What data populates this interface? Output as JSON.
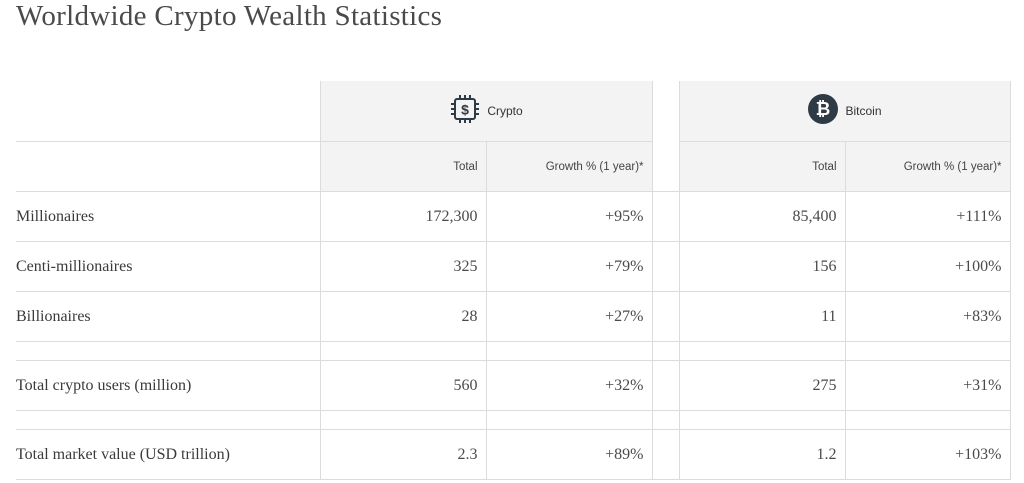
{
  "page": {
    "title": "Worldwide Crypto Wealth Statistics"
  },
  "colors": {
    "header_bg": "#f3f3f3",
    "bitcoin_icon_bg": "#2f3a47",
    "border": "#dcdcdc"
  },
  "groups": {
    "crypto": {
      "label": "Crypto",
      "icon": "crypto-chip-dollar-icon"
    },
    "bitcoin": {
      "label": "Bitcoin",
      "icon": "bitcoin-icon"
    }
  },
  "subheaders": {
    "total": "Total",
    "growth": "Growth % (1 year)*"
  },
  "rows": [
    {
      "label": "Millionaires",
      "crypto_total": "172,300",
      "crypto_growth": "+95%",
      "bitcoin_total": "85,400",
      "bitcoin_growth": "+111%"
    },
    {
      "label": "Centi-millionaires",
      "crypto_total": "325",
      "crypto_growth": "+79%",
      "bitcoin_total": "156",
      "bitcoin_growth": "+100%"
    },
    {
      "label": "Billionaires",
      "crypto_total": "28",
      "crypto_growth": "+27%",
      "bitcoin_total": "11",
      "bitcoin_growth": "+83%"
    },
    {
      "label": "Total crypto users (million)",
      "crypto_total": "560",
      "crypto_growth": "+32%",
      "bitcoin_total": "275",
      "bitcoin_growth": "+31%"
    },
    {
      "label": "Total market value (USD trillion)",
      "crypto_total": "2.3",
      "crypto_growth": "+89%",
      "bitcoin_total": "1.2",
      "bitcoin_growth": "+103%"
    }
  ]
}
